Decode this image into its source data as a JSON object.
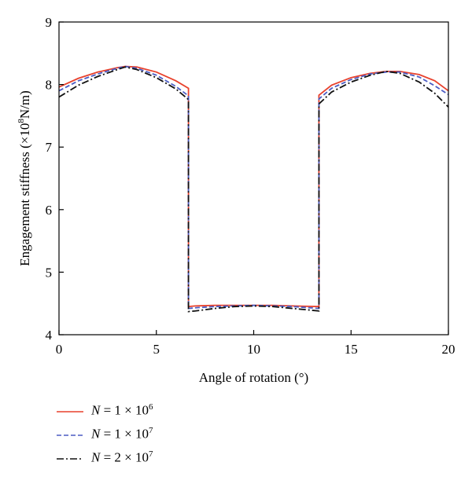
{
  "chart_data": {
    "type": "line",
    "title": "",
    "xlabel": "Angle of rotation (°)",
    "ylabel_main": "Engagement stiffness (×10",
    "ylabel_sup": "8",
    "ylabel_tail": "N/m)",
    "xlim": [
      0,
      20
    ],
    "ylim": [
      4,
      9
    ],
    "xticks": [
      "0",
      "5",
      "10",
      "15",
      "20"
    ],
    "yticks": [
      "4",
      "5",
      "6",
      "7",
      "8",
      "9"
    ],
    "grid": false,
    "legend_position": "bottom-left, below plot",
    "series": [
      {
        "name_prefix": "N = 1 × 10",
        "name_exp": "6",
        "color": "#e8412c",
        "style": "solid",
        "points": [
          [
            0,
            7.96
          ],
          [
            1,
            8.1
          ],
          [
            2,
            8.2
          ],
          [
            3,
            8.27
          ],
          [
            3.4,
            8.29
          ],
          [
            4,
            8.28
          ],
          [
            5,
            8.2
          ],
          [
            6,
            8.06
          ],
          [
            6.65,
            7.94
          ],
          [
            6.65,
            4.45
          ],
          [
            7,
            4.46
          ],
          [
            8,
            4.47
          ],
          [
            9,
            4.47
          ],
          [
            10,
            4.47
          ],
          [
            11,
            4.47
          ],
          [
            12,
            4.46
          ],
          [
            13.35,
            4.45
          ],
          [
            13.35,
            7.83
          ],
          [
            14,
            7.99
          ],
          [
            15,
            8.11
          ],
          [
            16,
            8.18
          ],
          [
            16.8,
            8.21
          ],
          [
            17.5,
            8.21
          ],
          [
            18.5,
            8.16
          ],
          [
            19.3,
            8.06
          ],
          [
            20,
            7.9
          ]
        ]
      },
      {
        "name_prefix": "N = 1 × 10",
        "name_exp": "7",
        "color": "#4b5cc4",
        "style": "dashed",
        "points": [
          [
            0,
            7.9
          ],
          [
            1,
            8.06
          ],
          [
            2,
            8.17
          ],
          [
            3,
            8.26
          ],
          [
            3.4,
            8.29
          ],
          [
            4,
            8.26
          ],
          [
            5,
            8.15
          ],
          [
            6,
            7.97
          ],
          [
            6.65,
            7.82
          ],
          [
            6.65,
            4.42
          ],
          [
            7,
            4.43
          ],
          [
            8,
            4.45
          ],
          [
            9,
            4.46
          ],
          [
            10,
            4.47
          ],
          [
            11,
            4.46
          ],
          [
            12,
            4.45
          ],
          [
            13.35,
            4.42
          ],
          [
            13.35,
            7.77
          ],
          [
            14,
            7.94
          ],
          [
            15,
            8.08
          ],
          [
            16,
            8.17
          ],
          [
            16.8,
            8.2
          ],
          [
            17.5,
            8.2
          ],
          [
            18.5,
            8.12
          ],
          [
            19.3,
            7.98
          ],
          [
            20,
            7.84
          ]
        ]
      },
      {
        "name_prefix": "N = 2 × 10",
        "name_exp": "7",
        "color": "#111111",
        "style": "dashdot",
        "points": [
          [
            0,
            7.8
          ],
          [
            1,
            7.99
          ],
          [
            2,
            8.13
          ],
          [
            3,
            8.24
          ],
          [
            3.4,
            8.28
          ],
          [
            4,
            8.24
          ],
          [
            5,
            8.11
          ],
          [
            6,
            7.93
          ],
          [
            6.65,
            7.76
          ],
          [
            6.65,
            4.37
          ],
          [
            7,
            4.38
          ],
          [
            8,
            4.42
          ],
          [
            9,
            4.45
          ],
          [
            10,
            4.46
          ],
          [
            11,
            4.45
          ],
          [
            12,
            4.42
          ],
          [
            13.35,
            4.38
          ],
          [
            13.35,
            7.69
          ],
          [
            14,
            7.88
          ],
          [
            15,
            8.04
          ],
          [
            16,
            8.15
          ],
          [
            16.8,
            8.21
          ],
          [
            17.5,
            8.18
          ],
          [
            18.5,
            8.04
          ],
          [
            19.3,
            7.86
          ],
          [
            20,
            7.64
          ]
        ]
      }
    ]
  }
}
